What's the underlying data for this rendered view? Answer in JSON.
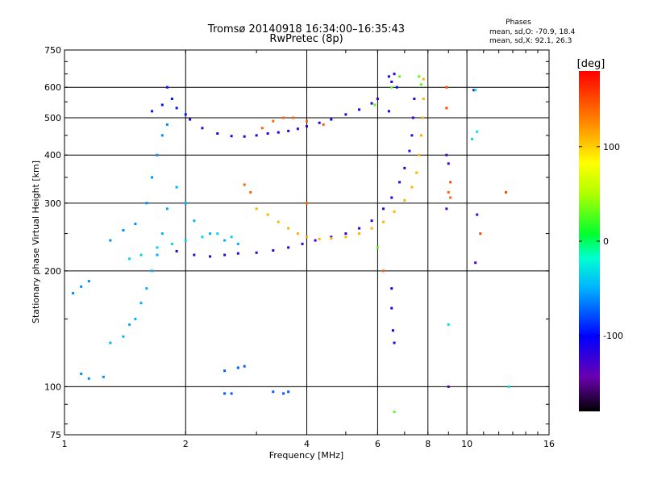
{
  "chart_data": {
    "type": "scatter",
    "title": "Tromsø 20140918 16:34:00–16:35:43",
    "subtitle": "RwPretec (8p)",
    "xlabel": "Frequency [MHz]",
    "ylabel": "Stationary phase Virtual Height [km]",
    "x_scale": "log",
    "y_scale": "log",
    "xlim": [
      1,
      16
    ],
    "ylim": [
      75,
      750
    ],
    "x_ticks": [
      1,
      2,
      4,
      6,
      8,
      10,
      16
    ],
    "x_tick_labels": [
      "1",
      "2",
      "4",
      "6",
      "8",
      "10",
      "16"
    ],
    "y_ticks": [
      75,
      100,
      200,
      300,
      400,
      500,
      600,
      750
    ],
    "y_tick_labels": [
      "75",
      "100",
      "200",
      "300",
      "400",
      "500",
      "600",
      "750"
    ],
    "grid": true,
    "phases_box": {
      "title": "Phases",
      "line_o": "mean, sd,O: -70.9, 18.4",
      "line_x": "mean, sd,X:  92.1, 26.3"
    },
    "colorbar": {
      "label": "[deg]",
      "min": -180,
      "max": 180,
      "ticks": [
        100,
        0,
        -100
      ],
      "tick_labels": [
        "100",
        "0",
        "-100"
      ],
      "colormap": "rainbow"
    },
    "traces": [
      {
        "name": "",
        "phase_deg": -115,
        "points": [
          [
            2.05,
            495
          ],
          [
            2.2,
            470
          ],
          [
            2.4,
            455
          ],
          [
            2.6,
            448
          ],
          [
            2.8,
            447
          ],
          [
            3.0,
            450
          ],
          [
            3.2,
            455
          ],
          [
            3.4,
            458
          ],
          [
            3.6,
            462
          ],
          [
            3.8,
            468
          ],
          [
            4.0,
            475
          ],
          [
            4.3,
            485
          ],
          [
            4.6,
            495
          ],
          [
            5.0,
            510
          ],
          [
            5.4,
            525
          ],
          [
            5.8,
            545
          ],
          [
            6.0,
            560
          ]
        ]
      },
      {
        "name": "",
        "phase_deg": -95,
        "points": [
          [
            1.65,
            520
          ],
          [
            1.75,
            540
          ],
          [
            1.8,
            600
          ],
          [
            1.85,
            560
          ],
          [
            1.9,
            530
          ],
          [
            2.0,
            510
          ]
        ]
      },
      {
        "name": "",
        "phase_deg": -120,
        "points": [
          [
            1.9,
            225
          ],
          [
            2.1,
            220
          ],
          [
            2.3,
            218
          ],
          [
            2.5,
            220
          ],
          [
            2.7,
            222
          ],
          [
            3.0,
            223
          ],
          [
            3.3,
            226
          ],
          [
            3.6,
            230
          ],
          [
            3.9,
            235
          ],
          [
            4.2,
            240
          ],
          [
            4.6,
            245
          ],
          [
            5.0,
            250
          ],
          [
            5.4,
            258
          ],
          [
            5.8,
            270
          ],
          [
            6.2,
            290
          ],
          [
            6.5,
            310
          ],
          [
            6.8,
            340
          ],
          [
            7.0,
            370
          ],
          [
            7.2,
            410
          ],
          [
            7.3,
            450
          ],
          [
            7.35,
            500
          ],
          [
            7.4,
            560
          ]
        ]
      },
      {
        "name": "",
        "phase_deg": 110,
        "points": [
          [
            3.0,
            290
          ],
          [
            3.2,
            280
          ],
          [
            3.4,
            268
          ],
          [
            3.6,
            258
          ],
          [
            3.8,
            250
          ],
          [
            4.0,
            245
          ],
          [
            4.3,
            242
          ],
          [
            4.6,
            243
          ],
          [
            5.0,
            245
          ],
          [
            5.4,
            250
          ],
          [
            5.8,
            258
          ],
          [
            6.2,
            268
          ],
          [
            6.6,
            285
          ],
          [
            7.0,
            305
          ],
          [
            7.3,
            330
          ],
          [
            7.5,
            360
          ],
          [
            7.6,
            400
          ],
          [
            7.7,
            450
          ],
          [
            7.75,
            500
          ],
          [
            7.8,
            560
          ],
          [
            7.8,
            630
          ]
        ]
      },
      {
        "name": "",
        "phase_deg": -60,
        "points": [
          [
            1.1,
            108
          ],
          [
            1.15,
            105
          ],
          [
            1.25,
            106
          ],
          [
            1.05,
            175
          ],
          [
            1.1,
            182
          ],
          [
            1.15,
            188
          ],
          [
            1.3,
            240
          ],
          [
            1.4,
            255
          ],
          [
            1.5,
            265
          ],
          [
            1.6,
            300
          ],
          [
            1.65,
            350
          ],
          [
            1.7,
            400
          ],
          [
            1.75,
            450
          ],
          [
            1.8,
            480
          ]
        ]
      },
      {
        "name": "",
        "phase_deg": -50,
        "points": [
          [
            1.3,
            130
          ],
          [
            1.4,
            135
          ],
          [
            1.45,
            145
          ],
          [
            1.5,
            150
          ],
          [
            1.55,
            165
          ],
          [
            1.6,
            180
          ],
          [
            1.65,
            200
          ],
          [
            1.7,
            220
          ],
          [
            1.75,
            250
          ],
          [
            1.8,
            290
          ],
          [
            1.9,
            330
          ],
          [
            2.0,
            300
          ],
          [
            2.1,
            270
          ],
          [
            2.3,
            250
          ],
          [
            2.5,
            240
          ],
          [
            2.7,
            235
          ]
        ]
      },
      {
        "name": "",
        "phase_deg": -35,
        "points": [
          [
            1.45,
            215
          ],
          [
            1.55,
            220
          ],
          [
            1.7,
            230
          ],
          [
            1.85,
            235
          ],
          [
            2.0,
            240
          ],
          [
            2.2,
            245
          ],
          [
            2.4,
            250
          ],
          [
            2.6,
            245
          ]
        ]
      },
      {
        "name": "",
        "phase_deg": -75,
        "points": [
          [
            2.5,
            110
          ],
          [
            2.7,
            112
          ],
          [
            2.8,
            113
          ],
          [
            2.5,
            96
          ],
          [
            2.6,
            96
          ],
          [
            3.3,
            97
          ],
          [
            3.5,
            96
          ],
          [
            3.6,
            97
          ]
        ]
      },
      {
        "name": "",
        "phase_deg": -110,
        "points": [
          [
            6.4,
            640
          ],
          [
            6.5,
            620
          ],
          [
            6.6,
            650
          ],
          [
            6.7,
            600
          ],
          [
            6.4,
            520
          ],
          [
            6.5,
            180
          ],
          [
            6.5,
            160
          ],
          [
            6.55,
            140
          ],
          [
            6.6,
            130
          ]
        ]
      },
      {
        "name": "",
        "phase_deg": 140,
        "points": [
          [
            3.1,
            470
          ],
          [
            3.3,
            490
          ],
          [
            3.5,
            500
          ],
          [
            3.7,
            500
          ],
          [
            4.0,
            490
          ],
          [
            4.4,
            480
          ],
          [
            2.8,
            335
          ],
          [
            2.9,
            320
          ],
          [
            4.0,
            300
          ],
          [
            6.2,
            200
          ],
          [
            9.0,
            320
          ],
          [
            9.1,
            310
          ]
        ]
      },
      {
        "name": "",
        "phase_deg": 30,
        "points": [
          [
            5.9,
            540
          ],
          [
            6.5,
            600
          ],
          [
            6.8,
            640
          ],
          [
            7.6,
            640
          ],
          [
            7.7,
            610
          ],
          [
            6.6,
            86
          ],
          [
            6.0,
            230
          ]
        ]
      },
      {
        "name": "",
        "phase_deg": -130,
        "points": [
          [
            8.9,
            400
          ],
          [
            9.0,
            380
          ],
          [
            8.9,
            290
          ],
          [
            10.5,
            210
          ],
          [
            9.0,
            100
          ],
          [
            10.4,
            590
          ],
          [
            10.6,
            280
          ]
        ]
      },
      {
        "name": "",
        "phase_deg": -30,
        "points": [
          [
            10.3,
            440
          ],
          [
            10.6,
            460
          ],
          [
            12.7,
            100
          ],
          [
            10.5,
            590
          ],
          [
            9.0,
            145
          ]
        ]
      },
      {
        "name": "",
        "phase_deg": 150,
        "points": [
          [
            8.9,
            600
          ],
          [
            8.9,
            530
          ],
          [
            9.1,
            340
          ],
          [
            12.5,
            320
          ],
          [
            10.8,
            250
          ]
        ]
      }
    ]
  }
}
